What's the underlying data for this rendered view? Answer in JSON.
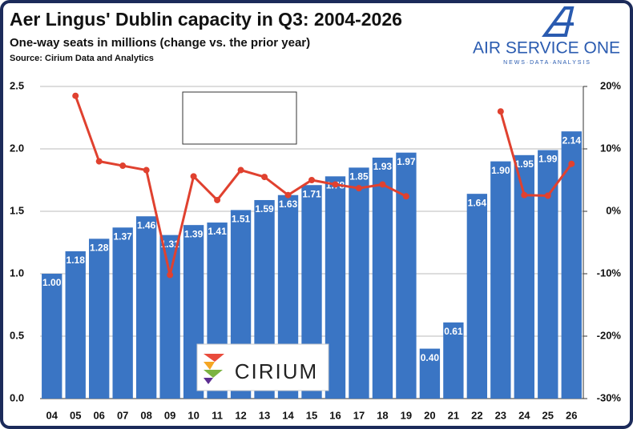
{
  "chart_data": {
    "type": "bar_line",
    "title": "Aer Lingus' Dublin capacity in Q3: 2004-2026",
    "subtitle": "One-way seats in millions (change vs. the prior year)",
    "source": "Source: Cirium Data and Analytics",
    "logo": {
      "name": "AIR SERVICE ONE",
      "tagline": "N E W S  ·  D A T A  ·  A N A L Y S I S"
    },
    "watermark": "CIRIUM",
    "categories": [
      "04",
      "05",
      "06",
      "07",
      "08",
      "09",
      "10",
      "11",
      "12",
      "13",
      "14",
      "15",
      "16",
      "17",
      "18",
      "19",
      "20",
      "21",
      "22",
      "23",
      "24",
      "25",
      "26"
    ],
    "series": [
      {
        "name": "Seats (millions)",
        "color": "#3a75c4",
        "values": [
          1.0,
          1.18,
          1.28,
          1.37,
          1.46,
          1.31,
          1.39,
          1.41,
          1.51,
          1.59,
          1.63,
          1.71,
          1.78,
          1.85,
          1.93,
          1.97,
          0.4,
          0.61,
          1.64,
          1.9,
          1.95,
          1.99,
          2.14
        ],
        "value_labels": [
          "1.00",
          "1.18",
          "1.28",
          "1.37",
          "1.46",
          "1.31",
          "1.39",
          "1.41",
          "1.51",
          "1.59",
          "1.63",
          "1.71",
          "1.78",
          "1.85",
          "1.93",
          "1.97",
          "0.40",
          "0.61",
          "1.64",
          "1.90",
          "1.95",
          "1.99",
          "2.14"
        ]
      },
      {
        "name": "% change",
        "color": "#e0412f",
        "axis": "y2",
        "values": [
          null,
          18.5,
          8.0,
          7.3,
          6.6,
          -10.2,
          5.6,
          1.8,
          6.6,
          5.5,
          2.6,
          5.0,
          4.3,
          3.7,
          4.3,
          2.4,
          null,
          null,
          null,
          16.0,
          2.6,
          2.5,
          7.6
        ]
      }
    ],
    "ylim": [
      0,
      2.5
    ],
    "yticks": [
      {
        "value": 0,
        "label": "0.0"
      },
      0.5,
      {
        "value": 1,
        "label": "1.0"
      },
      1.5,
      {
        "value": 2,
        "label": "2.0"
      },
      2.5
    ],
    "y2lim": [
      -30,
      20
    ],
    "y2ticks": [
      {
        "value": -30,
        "label": "-30%"
      },
      {
        "value": -20,
        "label": "-20%"
      },
      {
        "value": -10,
        "label": "-10%"
      },
      {
        "value": 0,
        "label": "0%"
      },
      {
        "value": 10,
        "label": "10%"
      },
      {
        "value": 20,
        "label": "20%"
      }
    ],
    "grid": true
  }
}
